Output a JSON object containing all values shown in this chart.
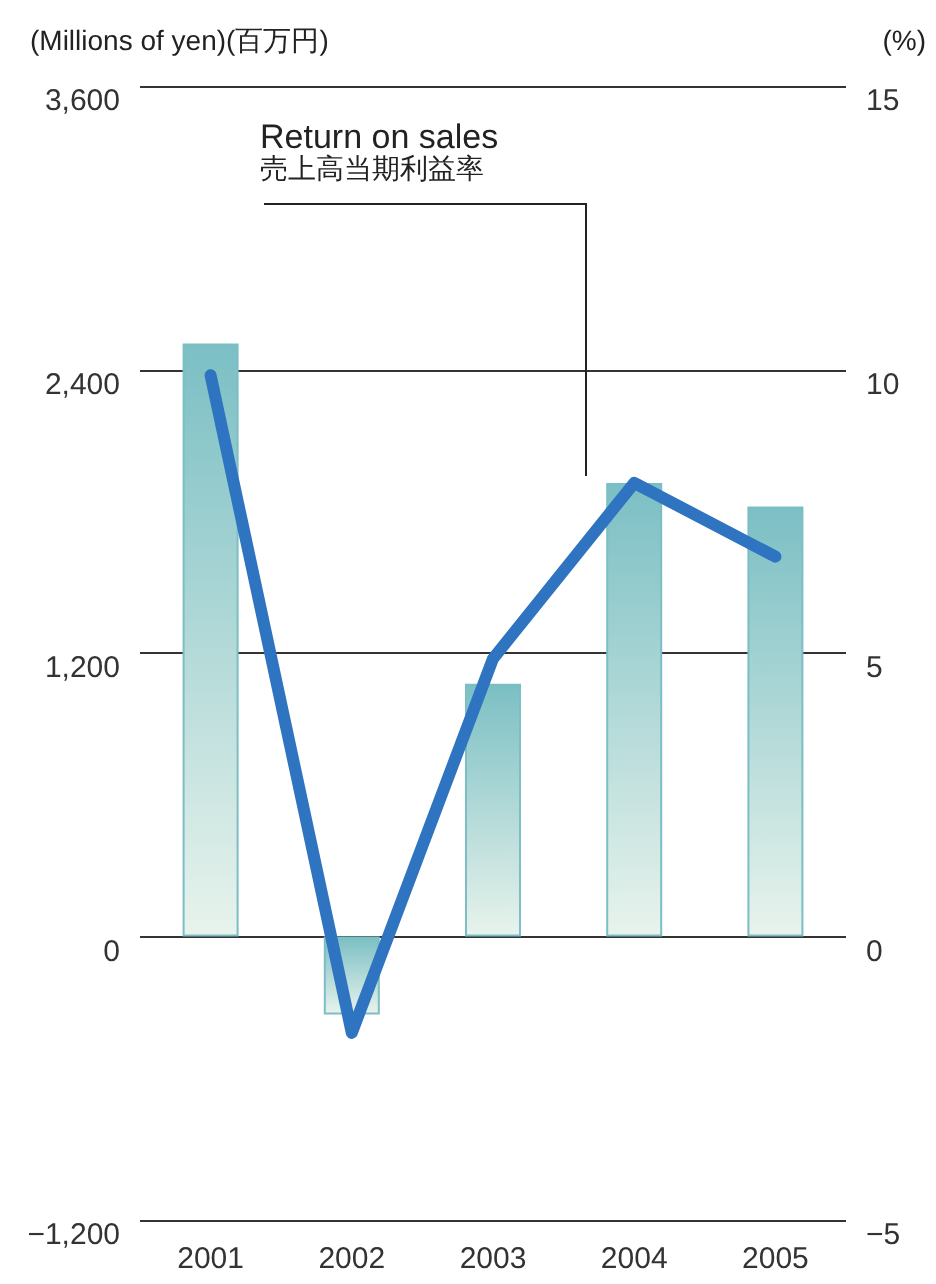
{
  "chart_data": {
    "type": "bar",
    "categories": [
      "2001",
      "2002",
      "2003",
      "2004",
      "2005"
    ],
    "series": [
      {
        "color": "#7bbfc4",
        "values": [
          2510,
          -330,
          1070,
          1920,
          1820
        ]
      },
      {
        "type": "line",
        "axis": "y2",
        "color": "#2f74c0",
        "values": [
          9.9,
          -1.7,
          4.9,
          8.0,
          6.7
        ]
      }
    ],
    "ylabel": "(Millions of yen)(百万円)",
    "y2label": "(%)",
    "ylim": [
      -1200,
      3600
    ],
    "yticks": [
      {
        "value": -1200,
        "label": "−1,200"
      },
      {
        "value": 0,
        "label": "0"
      },
      {
        "value": 1200,
        "label": "1,200"
      },
      {
        "value": 2400,
        "label": "2,400"
      },
      {
        "value": 3600,
        "label": "3,600"
      }
    ],
    "y2lim": [
      -5,
      15
    ],
    "y2ticks": [
      {
        "value": -5,
        "label": "−5"
      },
      0,
      5,
      10,
      15
    ],
    "annotations": [
      "Return on sales\n売上高当期利益率"
    ],
    "grid": "y",
    "marker": "none",
    "line_style": "solid"
  }
}
